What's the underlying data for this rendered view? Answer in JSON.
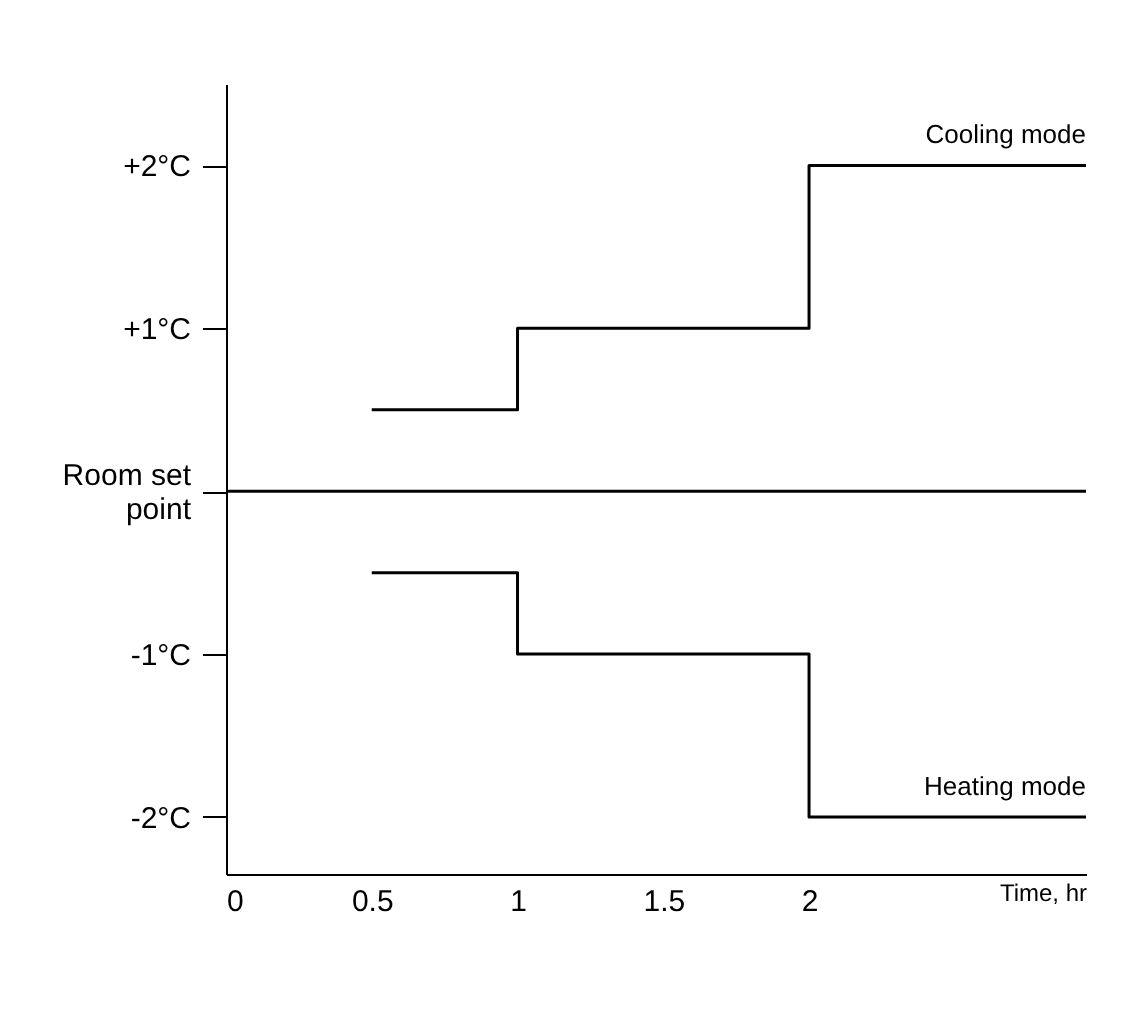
{
  "chart_data": {
    "type": "step",
    "xlabel": "Time, hr",
    "x": [
      0.5,
      1,
      2,
      2.95
    ],
    "series": [
      {
        "name": "Cooling mode",
        "color": "#000000",
        "values": [
          0.5,
          1,
          2,
          2
        ]
      },
      {
        "name": "Heating mode",
        "color": "#000000",
        "values": [
          -0.5,
          -1,
          -2,
          -2
        ]
      }
    ],
    "xlim": [
      0,
      2.95
    ],
    "xticks": [
      0,
      0.5,
      1,
      1.5,
      2
    ],
    "ylim": [
      -2.35,
      2.5
    ],
    "yticks": [
      {
        "value": 2,
        "label": "+2°C"
      },
      {
        "value": 1,
        "label": "+1°C"
      },
      {
        "value": 0,
        "label": "Room set point"
      },
      {
        "value": -1,
        "label": "-1°C"
      },
      {
        "value": -2,
        "label": "-2°C"
      }
    ],
    "ref_lines": [
      {
        "axis": "y",
        "value": 0,
        "color": "#000000"
      }
    ],
    "grid": false,
    "legend": false,
    "marker": "none",
    "line_style": "solid"
  }
}
